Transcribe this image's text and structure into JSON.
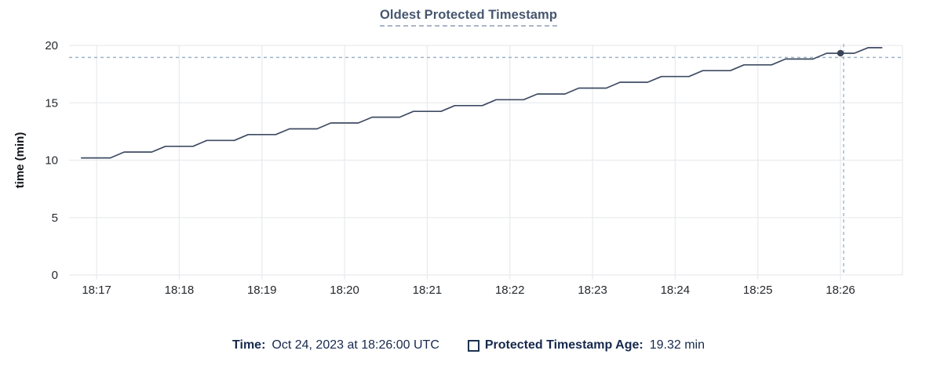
{
  "title": "Oldest Protected Timestamp",
  "footer": {
    "time_label": "Time:",
    "time_value": "Oct 24, 2023 at 18:26:00 UTC",
    "series_label": "Protected Timestamp Age:",
    "series_value": "19.32 min"
  },
  "chart_data": {
    "type": "line",
    "title": "Oldest Protected Timestamp",
    "xlabel": "",
    "ylabel": "time (min)",
    "ylim": [
      0,
      20
    ],
    "y_ticks": [
      0,
      5,
      10,
      15,
      20
    ],
    "x_ticks": [
      "18:17",
      "18:18",
      "18:19",
      "18:20",
      "18:21",
      "18:22",
      "18:23",
      "18:24",
      "18:25",
      "18:26"
    ],
    "x_range": [
      "18:16:40",
      "18:26:45"
    ],
    "grid": true,
    "legend_position": "bottom",
    "series": [
      {
        "name": "Protected Timestamp Age",
        "unit": "min",
        "points": [
          [
            "18:16:49",
            10.2
          ],
          [
            "18:17:10",
            10.2
          ],
          [
            "18:17:20",
            10.71
          ],
          [
            "18:17:40",
            10.71
          ],
          [
            "18:17:50",
            11.21
          ],
          [
            "18:18:10",
            11.21
          ],
          [
            "18:18:20",
            11.72
          ],
          [
            "18:18:40",
            11.72
          ],
          [
            "18:18:50",
            12.23
          ],
          [
            "18:19:10",
            12.23
          ],
          [
            "18:19:20",
            12.73
          ],
          [
            "18:19:40",
            12.73
          ],
          [
            "18:19:50",
            13.24
          ],
          [
            "18:20:10",
            13.24
          ],
          [
            "18:20:20",
            13.75
          ],
          [
            "18:20:40",
            13.75
          ],
          [
            "18:20:50",
            14.25
          ],
          [
            "18:21:10",
            14.25
          ],
          [
            "18:21:20",
            14.76
          ],
          [
            "18:21:40",
            14.76
          ],
          [
            "18:21:50",
            15.27
          ],
          [
            "18:22:10",
            15.27
          ],
          [
            "18:22:20",
            15.77
          ],
          [
            "18:22:40",
            15.77
          ],
          [
            "18:22:50",
            16.28
          ],
          [
            "18:23:10",
            16.28
          ],
          [
            "18:23:20",
            16.79
          ],
          [
            "18:23:40",
            16.79
          ],
          [
            "18:23:50",
            17.29
          ],
          [
            "18:24:10",
            17.29
          ],
          [
            "18:24:20",
            17.8
          ],
          [
            "18:24:40",
            17.8
          ],
          [
            "18:24:50",
            18.31
          ],
          [
            "18:25:10",
            18.31
          ],
          [
            "18:25:20",
            18.81
          ],
          [
            "18:25:40",
            18.81
          ],
          [
            "18:25:50",
            19.32
          ],
          [
            "18:26:10",
            19.32
          ],
          [
            "18:26:20",
            19.8
          ],
          [
            "18:26:30",
            19.8
          ]
        ]
      }
    ],
    "hover": {
      "time": "18:26:00",
      "value": 19.32,
      "crosshair_y_value": 18.95
    },
    "colors": {
      "line": "#3f4c63",
      "dot": "#394358",
      "grid": "#e9ebee",
      "crosshair": "#9fb3c6",
      "axis_text": "#25282d",
      "title_text": "#46566e",
      "footer_text": "#16294d"
    }
  }
}
